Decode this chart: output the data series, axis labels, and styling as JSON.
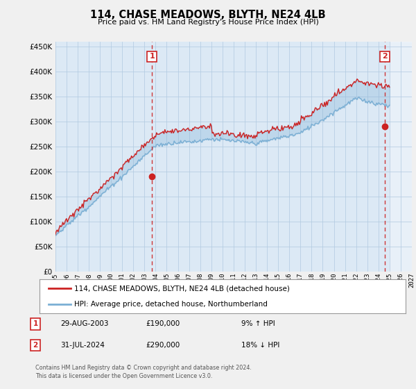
{
  "title": "114, CHASE MEADOWS, BLYTH, NE24 4LB",
  "subtitle": "Price paid vs. HM Land Registry's House Price Index (HPI)",
  "background_color": "#f0f0f0",
  "plot_bg_color": "#dce9f5",
  "legend_line1": "114, CHASE MEADOWS, BLYTH, NE24 4LB (detached house)",
  "legend_line2": "HPI: Average price, detached house, Northumberland",
  "footer1": "Contains HM Land Registry data © Crown copyright and database right 2024.",
  "footer2": "This data is licensed under the Open Government Licence v3.0.",
  "annotation1_label": "1",
  "annotation1_date": "29-AUG-2003",
  "annotation1_price": "£190,000",
  "annotation1_hpi": "9% ↑ HPI",
  "annotation2_label": "2",
  "annotation2_date": "31-JUL-2024",
  "annotation2_price": "£290,000",
  "annotation2_hpi": "18% ↓ HPI",
  "ylim": [
    0,
    460000
  ],
  "yticks": [
    0,
    50000,
    100000,
    150000,
    200000,
    250000,
    300000,
    350000,
    400000,
    450000
  ],
  "hpi_color": "#7bafd4",
  "price_color": "#cc2222",
  "vline_color": "#cc2222",
  "sale1_x": 2003.67,
  "sale1_y": 190000,
  "sale2_x": 2024.58,
  "sale2_y": 290000,
  "xmin": 1995,
  "xmax": 2027,
  "future_x": 2025.0
}
